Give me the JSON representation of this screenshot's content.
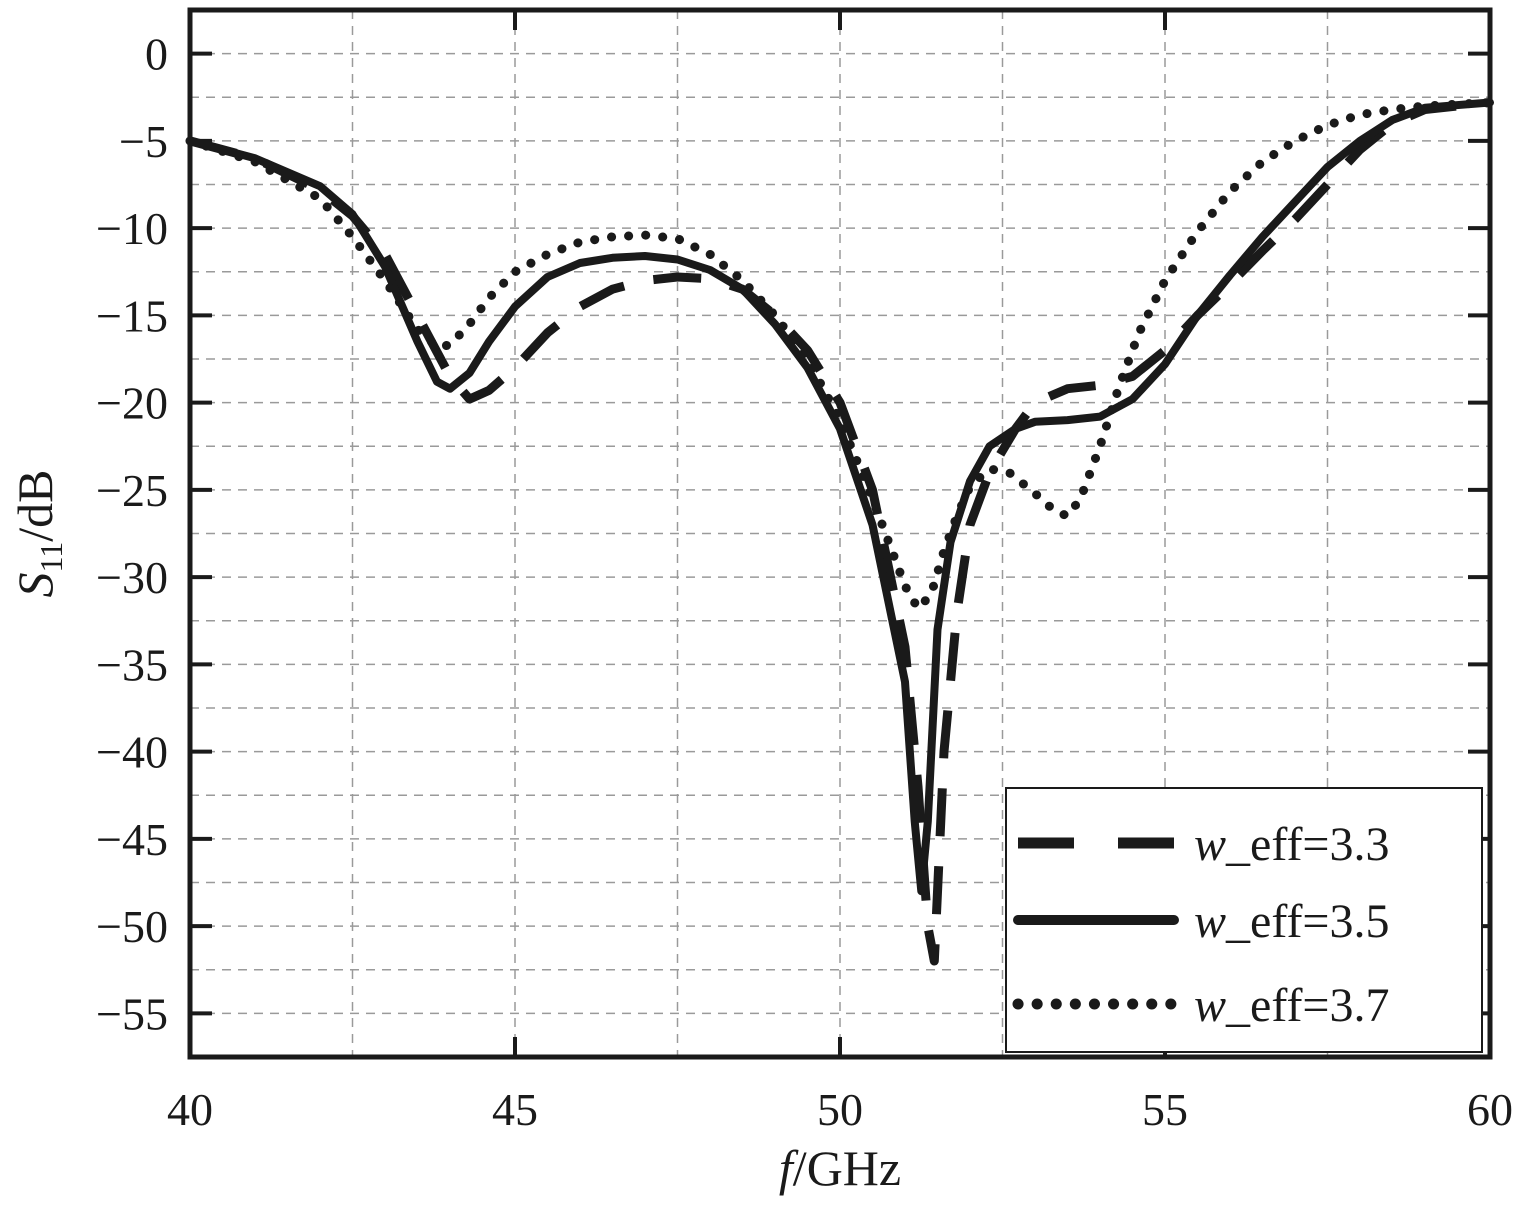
{
  "chart_data": {
    "type": "line",
    "xlabel_italic": "f",
    "xlabel_rest": "/GHz",
    "ylabel_main": "S",
    "ylabel_sub": "11",
    "ylabel_rest": "/dB",
    "xlim": [
      40,
      60
    ],
    "ylim": [
      -57.5,
      2.5
    ],
    "xticks": [
      40,
      45,
      50,
      55,
      60
    ],
    "yticks": [
      0,
      -5,
      -10,
      -15,
      -20,
      -25,
      -30,
      -35,
      -40,
      -45,
      -50,
      -55
    ],
    "xtick_labels": [
      "40",
      "45",
      "50",
      "55",
      "60"
    ],
    "ytick_labels": [
      "0",
      "−5",
      "−10",
      "−15",
      "−20",
      "−25",
      "−30",
      "−35",
      "−40",
      "−45",
      "−50",
      "−55"
    ],
    "grid": true,
    "legend_position": "bottom-right",
    "series": [
      {
        "name_italic": "w",
        "name_rest": "_eff=3.3",
        "style": "dashed",
        "color": "#1a1a1a",
        "x": [
          40,
          41,
          42,
          42.5,
          43,
          43.5,
          44,
          44.3,
          44.6,
          45,
          45.5,
          46,
          46.5,
          47,
          47.5,
          48,
          48.5,
          49,
          49.5,
          50,
          50.5,
          51,
          51.2,
          51.35,
          51.45,
          51.6,
          51.8,
          52,
          52.3,
          52.7,
          53,
          53.5,
          54,
          54.5,
          55,
          55.5,
          56,
          56.5,
          57,
          57.5,
          58,
          58.5,
          59,
          60
        ],
        "y": [
          -5,
          -6,
          -7.8,
          -9.3,
          -11.5,
          -15,
          -18.5,
          -19.8,
          -19.3,
          -18,
          -16,
          -14.5,
          -13.5,
          -13,
          -12.8,
          -12.9,
          -13.5,
          -15,
          -17,
          -20,
          -25,
          -34,
          -42,
          -50,
          -52,
          -40,
          -32,
          -27,
          -24,
          -21.5,
          -20,
          -19.2,
          -19,
          -18.5,
          -17,
          -15,
          -13.2,
          -11.3,
          -9.5,
          -7.5,
          -5.5,
          -4,
          -3.2,
          -2.8
        ]
      },
      {
        "name_italic": "w",
        "name_rest": "_eff=3.5",
        "style": "solid",
        "color": "#1a1a1a",
        "x": [
          40,
          41,
          42,
          42.5,
          43,
          43.5,
          43.8,
          44,
          44.3,
          44.6,
          45,
          45.5,
          46,
          46.5,
          47,
          47.5,
          48,
          48.5,
          49,
          49.5,
          50,
          50.5,
          51,
          51.15,
          51.25,
          51.35,
          51.5,
          51.7,
          52,
          52.3,
          52.7,
          53,
          53.5,
          54,
          54.5,
          55,
          55.5,
          56,
          56.5,
          57,
          57.5,
          58,
          58.5,
          59,
          60
        ],
        "y": [
          -5,
          -6,
          -7.6,
          -9.2,
          -12.2,
          -16.5,
          -18.8,
          -19.2,
          -18.3,
          -16.5,
          -14.5,
          -12.8,
          -12,
          -11.7,
          -11.6,
          -11.8,
          -12.4,
          -13.5,
          -15.5,
          -18,
          -21.5,
          -27,
          -36,
          -44,
          -48,
          -44,
          -33,
          -28,
          -24.5,
          -22.5,
          -21.5,
          -21.1,
          -21,
          -20.8,
          -19.8,
          -17.8,
          -15,
          -12.7,
          -10.5,
          -8.5,
          -6.5,
          -5,
          -3.8,
          -3.1,
          -2.8
        ]
      },
      {
        "name_italic": "w",
        "name_rest": "_eff=3.7",
        "style": "dotted",
        "color": "#1a1a1a",
        "x": [
          40,
          41,
          42,
          42.5,
          43,
          43.5,
          43.8,
          44,
          44.3,
          44.6,
          45,
          45.5,
          46,
          46.5,
          47,
          47.5,
          48,
          48.5,
          49,
          49.5,
          50,
          50.5,
          51,
          51.2,
          51.4,
          51.6,
          51.8,
          52,
          52.3,
          52.6,
          53,
          53.3,
          53.5,
          53.7,
          54,
          54.3,
          54.6,
          55,
          55.5,
          56,
          56.5,
          57,
          57.5,
          58,
          58.5,
          59,
          60
        ],
        "y": [
          -5,
          -6.2,
          -8.3,
          -10.5,
          -13,
          -15.8,
          -16.8,
          -16.7,
          -15.5,
          -14,
          -12.5,
          -11.5,
          -10.8,
          -10.5,
          -10.4,
          -10.6,
          -11.5,
          -13,
          -15,
          -17.5,
          -21,
          -25.5,
          -30.5,
          -31.8,
          -31,
          -28.5,
          -26.5,
          -24.8,
          -23.8,
          -24,
          -25.2,
          -26.2,
          -26.5,
          -25.5,
          -22.5,
          -19,
          -16,
          -13,
          -10.2,
          -7.9,
          -6.2,
          -5,
          -4.1,
          -3.5,
          -3.2,
          -3,
          -2.8
        ]
      }
    ]
  }
}
